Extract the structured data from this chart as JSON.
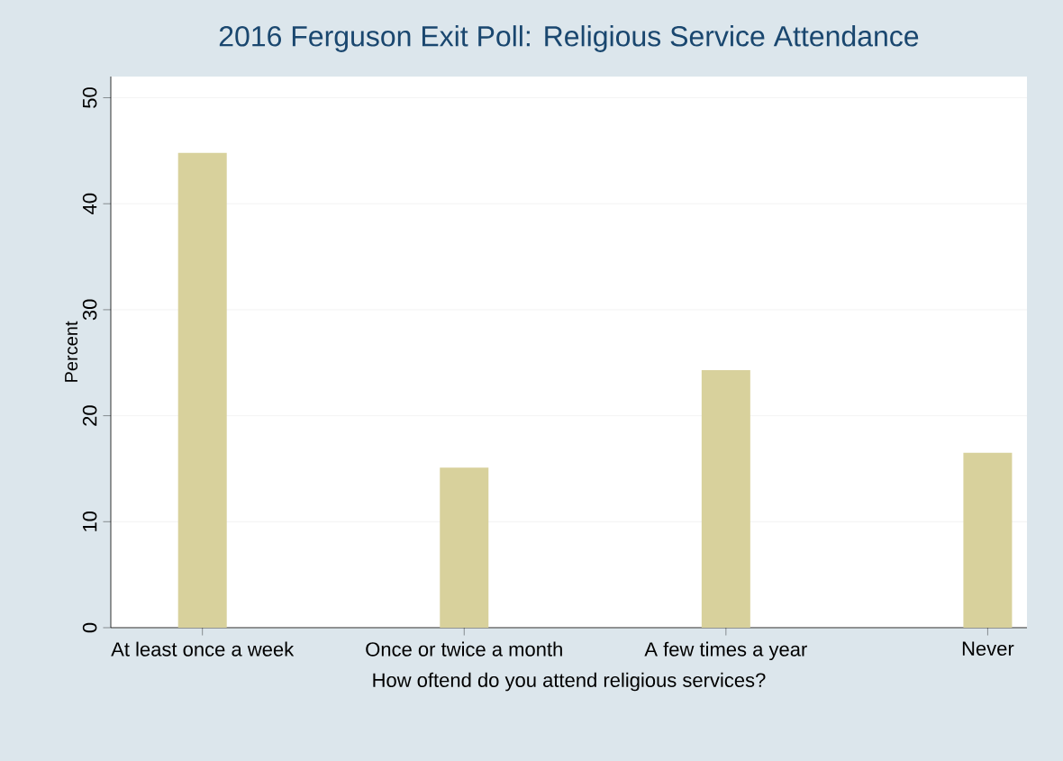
{
  "chart_data": {
    "type": "bar",
    "title": "2016 Ferguson Exit Poll: Religious Service Attendance",
    "xlabel": "How oftend do you attend religious services?",
    "ylabel": "Percent",
    "categories": [
      "At least once a week",
      "Once or twice a month",
      "A few times a year",
      "Never"
    ],
    "values": [
      44.8,
      15.1,
      24.3,
      16.5
    ],
    "color": "#d8d19c",
    "ylim": [
      0,
      52
    ],
    "yticks": [
      0,
      10,
      20,
      30,
      40,
      50
    ],
    "grid": "y"
  }
}
